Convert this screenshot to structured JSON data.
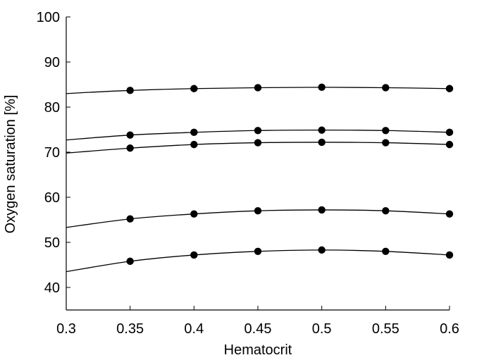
{
  "chart_data": {
    "type": "line",
    "xlabel": "Hematocrit",
    "ylabel": "Oxygen saturation [%]",
    "xlim": [
      0.3,
      0.6
    ],
    "ylim": [
      35,
      100
    ],
    "x_ticks": [
      "0.3",
      "0.35",
      "0.4",
      "0.45",
      "0.5",
      "0.55",
      "0.6"
    ],
    "y_ticks": [
      "40",
      "50",
      "60",
      "70",
      "80",
      "90",
      "100"
    ],
    "grid": false,
    "legend": "none",
    "x": [
      0.3,
      0.35,
      0.4,
      0.45,
      0.5,
      0.55,
      0.6
    ],
    "marker_x": [
      0.35,
      0.4,
      0.45,
      0.5,
      0.55,
      0.6
    ],
    "series": [
      {
        "values": [
          83.0,
          83.7,
          84.1,
          84.3,
          84.4,
          84.3,
          84.1
        ]
      },
      {
        "values": [
          72.7,
          73.8,
          74.4,
          74.8,
          74.9,
          74.8,
          74.4
        ]
      },
      {
        "values": [
          69.8,
          70.9,
          71.7,
          72.1,
          72.2,
          72.1,
          71.7
        ]
      },
      {
        "values": [
          53.3,
          55.2,
          56.3,
          57.0,
          57.2,
          57.0,
          56.3
        ]
      },
      {
        "values": [
          43.5,
          45.8,
          47.2,
          48.0,
          48.3,
          48.0,
          47.2
        ]
      }
    ],
    "line_color": "#000000"
  }
}
